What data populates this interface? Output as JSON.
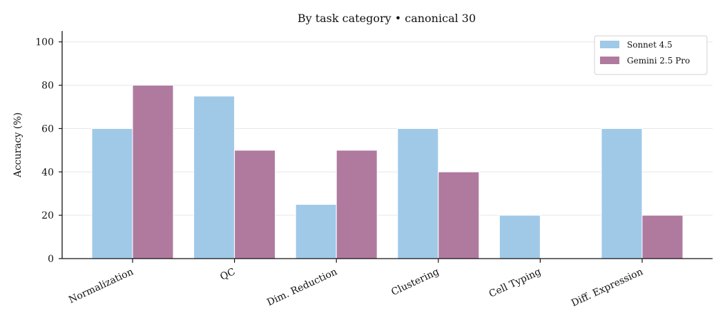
{
  "chart_data": {
    "type": "bar",
    "title": "By task category • canonical 30",
    "xlabel": "",
    "ylabel": "Accuracy (%)",
    "ylim": [
      0,
      105
    ],
    "yticks": [
      0,
      20,
      40,
      60,
      80,
      100
    ],
    "grid": true,
    "legend_position": "top-right",
    "categories": [
      "Normalization",
      "QC",
      "Dim. Reduction",
      "Clustering",
      "Cell Typing",
      "Diff. Expression"
    ],
    "series": [
      {
        "name": "Sonnet 4.5",
        "color": "#a0c9e8",
        "values": [
          60,
          75,
          25,
          60,
          20,
          60
        ]
      },
      {
        "name": "Gemini 2.5 Pro",
        "color": "#b07a9f",
        "values": [
          80,
          50,
          50,
          40,
          0,
          20
        ]
      }
    ]
  }
}
